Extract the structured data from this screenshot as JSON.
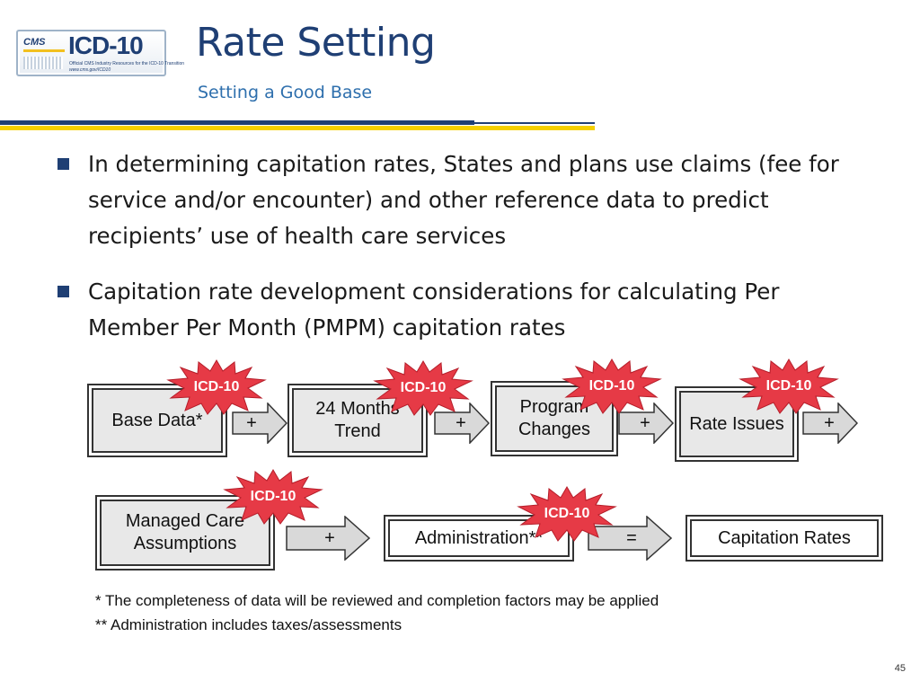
{
  "logo": {
    "brand": "CMS",
    "mark": "ICD-10",
    "line1": "Official CMS Industry Resources for the ICD-10 Transition",
    "line2": "www.cms.gov/ICD10"
  },
  "header": {
    "title": "Rate Setting",
    "subtitle": "Setting a Good Base"
  },
  "bullets": [
    "In determining capitation rates, States and plans use claims (fee for service and/or encounter) and other reference data to predict recipients’ use of health care services",
    "Capitation rate development considerations for calculating Per Member Per Month (PMPM) capitation rates"
  ],
  "flow": {
    "row1": [
      {
        "label": "Base Data*"
      },
      {
        "label": "24 Months Trend"
      },
      {
        "label": "Program Changes"
      },
      {
        "label": "Rate Issues"
      }
    ],
    "row2": [
      {
        "label": "Managed Care Assumptions"
      },
      {
        "label": "Administration**"
      },
      {
        "label": "Capitation Rates"
      }
    ],
    "operators": [
      "+",
      "+",
      "+",
      "+",
      "+",
      "="
    ],
    "badge": "ICD-10"
  },
  "footnotes": [
    "* The completeness of data will be reviewed and completion factors may be applied",
    "** Administration includes taxes/assessments"
  ],
  "page_number": "45",
  "colors": {
    "navy": "#1f3f74",
    "accent_blue": "#2e6fad",
    "yellow": "#f5d000",
    "badge_red": "#e63a46"
  }
}
